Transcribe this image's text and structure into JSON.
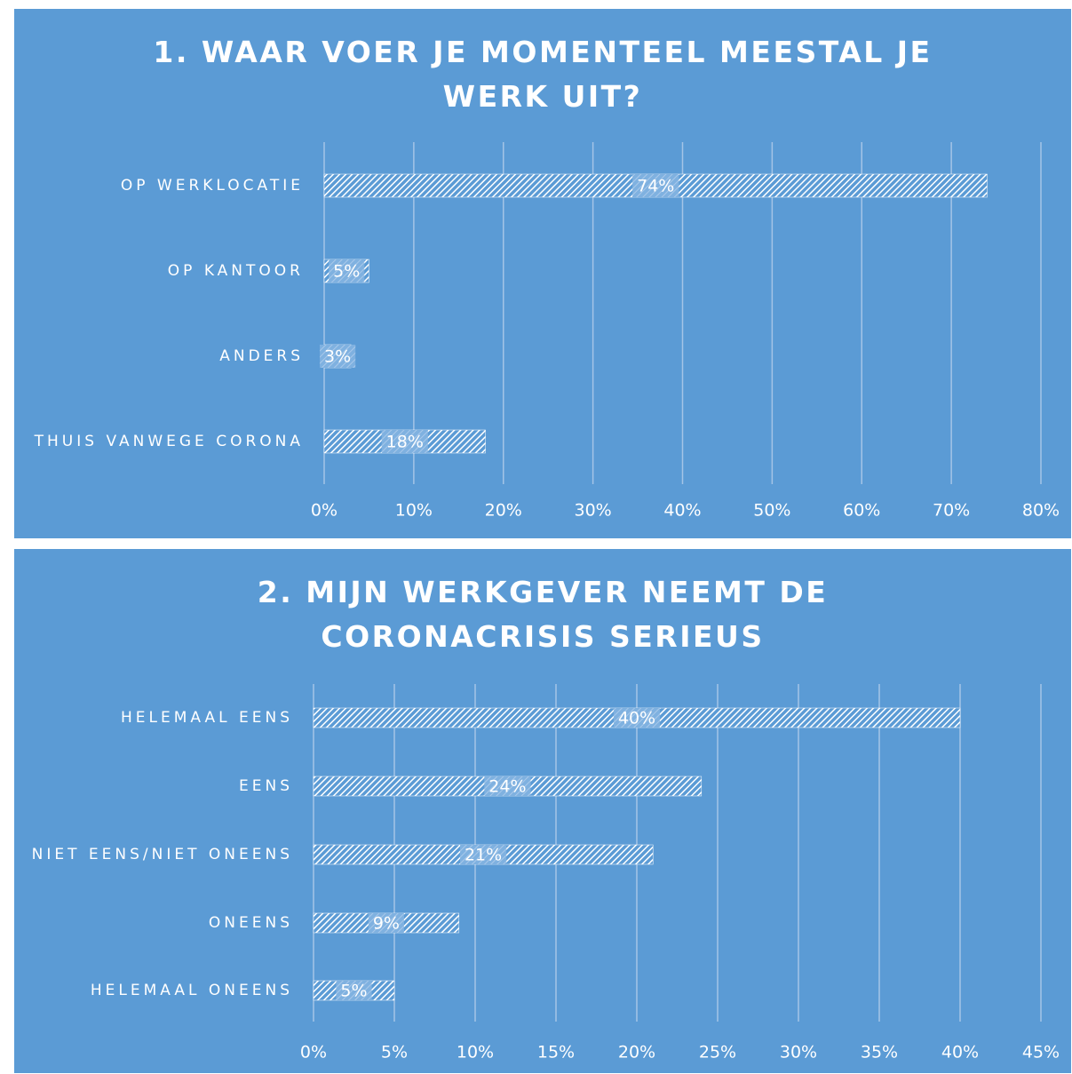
{
  "chart_data": [
    {
      "type": "bar",
      "orientation": "horizontal",
      "title": "1. WAAR VOER JE MOMENTEEL MEESTAL JE WERK UIT?",
      "categories": [
        "OP WERKLOCATIE",
        "OP KANTOOR",
        "ANDERS",
        "THUIS VANWEGE CORONA"
      ],
      "values": [
        74,
        5,
        3,
        18
      ],
      "value_labels": [
        "74%",
        "5%",
        "3%",
        "18%"
      ],
      "color": "#ffffff",
      "xlim": [
        0,
        80
      ],
      "xticks": [
        {
          "value": 0,
          "label": "0%"
        },
        {
          "value": 10,
          "label": "10%"
        },
        {
          "value": 20,
          "label": "20%"
        },
        {
          "value": 30,
          "label": "30%"
        },
        {
          "value": 40,
          "label": "40%"
        },
        {
          "value": 50,
          "label": "50%"
        },
        {
          "value": 60,
          "label": "60%"
        },
        {
          "value": 70,
          "label": "70%"
        },
        {
          "value": 80,
          "label": "80%"
        }
      ],
      "grid": true
    },
    {
      "type": "bar",
      "orientation": "horizontal",
      "title": "2. MIJN WERKGEVER NEEMT DE CORONACRISIS SERIEUS",
      "categories": [
        "HELEMAAL EENS",
        "EENS",
        "NIET EENS/NIET ONEENS",
        "ONEENS",
        "HELEMAAL ONEENS"
      ],
      "values": [
        40,
        24,
        21,
        9,
        5
      ],
      "value_labels": [
        "40%",
        "24%",
        "21%",
        "9%",
        "5%"
      ],
      "color": "#ffffff",
      "xlim": [
        0,
        45
      ],
      "xticks": [
        {
          "value": 0,
          "label": "0%"
        },
        {
          "value": 5,
          "label": "5%"
        },
        {
          "value": 10,
          "label": "10%"
        },
        {
          "value": 15,
          "label": "15%"
        },
        {
          "value": 20,
          "label": "20%"
        },
        {
          "value": 25,
          "label": "25%"
        },
        {
          "value": 30,
          "label": "30%"
        },
        {
          "value": 35,
          "label": "35%"
        },
        {
          "value": 40,
          "label": "40%"
        },
        {
          "value": 45,
          "label": "45%"
        }
      ],
      "grid": true
    }
  ]
}
